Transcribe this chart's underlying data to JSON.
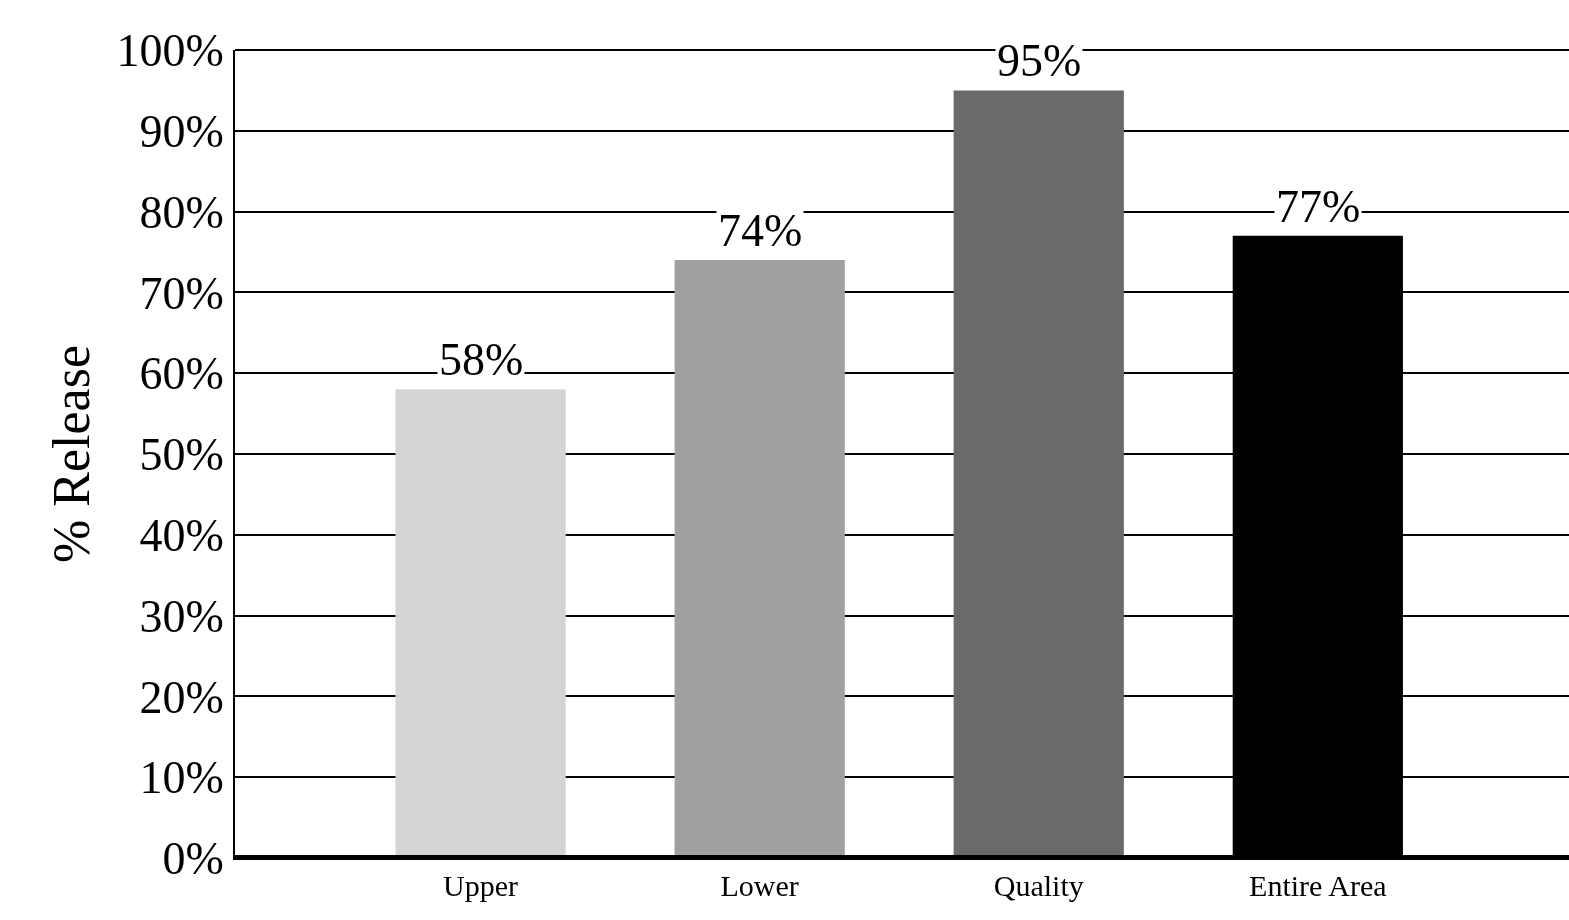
{
  "chart_data": {
    "type": "bar",
    "ylabel": "% Release",
    "categories": [
      "Upper",
      "Lower",
      "Quality",
      "Entire Area"
    ],
    "values": [
      58,
      74,
      95,
      77
    ],
    "colors": [
      "#d4d4d4",
      "#a0a0a0",
      "#6a6a6a",
      "#000000"
    ],
    "value_labels": [
      "58%",
      "74%",
      "95%",
      "77%"
    ],
    "ylim": [
      0,
      100
    ],
    "yticks": [
      {
        "value": 0,
        "label": "0%"
      },
      {
        "value": 10,
        "label": "10%"
      },
      {
        "value": 20,
        "label": "20%"
      },
      {
        "value": 30,
        "label": "30%"
      },
      {
        "value": 40,
        "label": "40%"
      },
      {
        "value": 50,
        "label": "50%"
      },
      {
        "value": 60,
        "label": "60%"
      },
      {
        "value": 70,
        "label": "70%"
      },
      {
        "value": 80,
        "label": "80%"
      },
      {
        "value": 90,
        "label": "90%"
      },
      {
        "value": 100,
        "label": "100%"
      }
    ],
    "grid": "y",
    "legend": false
  }
}
